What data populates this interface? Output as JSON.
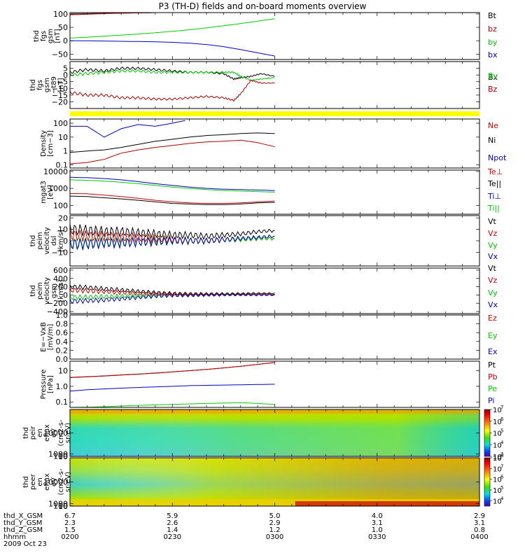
{
  "title": "P3 (TH-D) fields and on-board moments overview",
  "chart_data": [
    {
      "type": "line",
      "panel": "fgs_gsm",
      "ylabel": [
        "thd",
        "fgs",
        "gsm",
        "[nT]"
      ],
      "ylim": [
        -70,
        105
      ],
      "ticks": [
        {
          "v": 100,
          "t": "100"
        },
        {
          "v": 50,
          "t": "50"
        },
        {
          "v": 0,
          "t": "0"
        },
        {
          "v": -50,
          "t": "−50"
        }
      ],
      "x": [
        0,
        5,
        10,
        15,
        20,
        25,
        30,
        35,
        40,
        45,
        50,
        55,
        60
      ],
      "series": [
        {
          "name": "Bt",
          "color": "#000000",
          "values": [
            100,
            101,
            102,
            103,
            104,
            105,
            106,
            106,
            106,
            106,
            106,
            106,
            106
          ]
        },
        {
          "name": "bz",
          "color": "#b00000",
          "values": [
            97,
            99,
            101,
            103,
            104,
            105,
            106,
            106,
            106,
            106,
            106,
            106,
            106
          ]
        },
        {
          "name": "by",
          "color": "#00cc00",
          "values": [
            10,
            13,
            17,
            21,
            25,
            30,
            35,
            41,
            48,
            56,
            64,
            73,
            82
          ]
        },
        {
          "name": "bx",
          "color": "#0000cc",
          "values": [
            0,
            0,
            -1,
            -2,
            -3,
            -4,
            -6,
            -9,
            -14,
            -22,
            -33,
            -45,
            -57
          ]
        }
      ]
    },
    {
      "type": "line",
      "panel": "fgs_gsm_t89",
      "ylabel": [
        "thd",
        "fgs",
        "gsm",
        "−t89",
        "[nT]"
      ],
      "ylim": [
        -25,
        10
      ],
      "ticks": [
        {
          "v": 5,
          "t": "5"
        },
        {
          "v": 0,
          "t": "0"
        },
        {
          "v": -5,
          "t": "−5"
        },
        {
          "v": -10,
          "t": "−10"
        },
        {
          "v": -15,
          "t": "−15"
        },
        {
          "v": -20,
          "t": "−20"
        }
      ],
      "x": [
        0,
        5,
        10,
        15,
        20,
        25,
        30,
        35,
        40,
        45,
        48,
        50,
        53,
        56,
        60
      ],
      "series": [
        {
          "name": "Bx",
          "color": "#000000",
          "values": [
            2,
            4,
            3,
            5,
            5,
            4,
            3,
            2,
            2,
            1,
            -3,
            -2,
            -1,
            1,
            -1
          ]
        },
        {
          "name": "By",
          "color": "#00cc00",
          "values": [
            0,
            1,
            2,
            3,
            3,
            2,
            2,
            2,
            2,
            2,
            2,
            -1,
            -4,
            -3,
            -2
          ]
        },
        {
          "name": "Bz",
          "color": "#b00000",
          "values": [
            -13,
            -15,
            -15,
            -17,
            -17,
            -18,
            -18,
            -17,
            -16,
            -17,
            -19,
            -14,
            -4,
            -6,
            -6
          ]
        }
      ]
    },
    {
      "type": "line",
      "panel": "density",
      "log": true,
      "ylabel": [
        "Density",
        "[cm−3]"
      ],
      "ylim": [
        0.06,
        200
      ],
      "ticks": [
        {
          "v": 100,
          "t": "100"
        },
        {
          "v": 10,
          "t": "10"
        },
        {
          "v": 1,
          "t": "1"
        },
        {
          "v": 0.1,
          "t": "0.1"
        }
      ],
      "x": [
        0,
        5,
        10,
        15,
        20,
        25,
        30,
        35,
        40,
        45,
        50,
        55,
        60
      ],
      "series": [
        {
          "name": "Ne",
          "color": "#b00000",
          "values": [
            0.12,
            0.15,
            0.25,
            0.7,
            1.2,
            1.8,
            2.5,
            3.5,
            4.5,
            5,
            6,
            4,
            2
          ]
        },
        {
          "name": "Ni",
          "color": "#000000",
          "values": [
            0.8,
            1.0,
            1.2,
            1.8,
            3,
            5,
            7,
            10,
            13,
            15,
            18,
            20,
            18
          ]
        },
        {
          "name": "Npot",
          "color": "#0000cc",
          "values": [
            60,
            60,
            10,
            40,
            80,
            60,
            100,
            180,
            null,
            null,
            null,
            null,
            null
          ]
        }
      ]
    },
    {
      "type": "line",
      "panel": "temperature",
      "log": true,
      "ylabel": [
        "mgat3",
        "[eV]"
      ],
      "ylim": [
        30,
        12000
      ],
      "ticks": [
        {
          "v": 10000,
          "t": "10000"
        },
        {
          "v": 1000,
          "t": "1000"
        },
        {
          "v": 100,
          "t": "100"
        }
      ],
      "x": [
        0,
        5,
        10,
        15,
        20,
        25,
        30,
        35,
        40,
        45,
        50,
        55,
        60
      ],
      "series": [
        {
          "name": "Te⊥",
          "color": "#cc0000",
          "values": [
            500,
            480,
            400,
            330,
            260,
            200,
            160,
            140,
            130,
            130,
            140,
            160,
            180
          ]
        },
        {
          "name": "Te||",
          "color": "#000000",
          "values": [
            350,
            330,
            280,
            240,
            200,
            160,
            130,
            120,
            110,
            110,
            120,
            140,
            150
          ]
        },
        {
          "name": "Ti⊥",
          "color": "#0000cc",
          "values": [
            4500,
            4300,
            3800,
            3200,
            2500,
            1900,
            1500,
            1200,
            1000,
            900,
            850,
            800,
            750
          ]
        },
        {
          "name": "Ti||",
          "color": "#00cc00",
          "values": [
            3200,
            3000,
            2700,
            2300,
            1900,
            1500,
            1200,
            1000,
            850,
            750,
            700,
            650,
            600
          ]
        }
      ]
    },
    {
      "type": "line",
      "panel": "velocity_dsl",
      "ylabel": [
        "thd",
        "peim",
        "velocity",
        "dsl",
        "[km/s]"
      ],
      "ylim": [
        -22,
        22
      ],
      "ticks": [
        {
          "v": 20,
          "t": "20"
        },
        {
          "v": 10,
          "t": "10"
        },
        {
          "v": 0,
          "t": "0"
        },
        {
          "v": -10,
          "t": "−10"
        }
      ],
      "x": [
        0,
        5,
        10,
        15,
        20,
        25,
        30,
        35,
        40,
        45,
        50,
        55,
        60
      ],
      "series": [
        {
          "name": "Vt",
          "color": "#000000",
          "values": [
            10,
            9,
            8,
            8,
            7,
            6,
            5,
            5,
            4,
            5,
            6,
            8,
            9
          ]
        },
        {
          "name": "Vz",
          "color": "#cc0000",
          "values": [
            5,
            4,
            4,
            3,
            3,
            2,
            1,
            0,
            0,
            1,
            1,
            2,
            2
          ]
        },
        {
          "name": "Vy",
          "color": "#00cc00",
          "values": [
            -2,
            -2,
            -1,
            -1,
            -1,
            0,
            0,
            0,
            0,
            1,
            1,
            2,
            2
          ]
        },
        {
          "name": "Vx",
          "color": "#0000cc",
          "values": [
            -3,
            -3,
            -2,
            -2,
            -1,
            -1,
            0,
            0,
            0,
            1,
            2,
            3,
            4
          ]
        }
      ]
    },
    {
      "type": "line",
      "panel": "velocity_gsm",
      "ylabel": [
        "thd",
        "peim",
        "velocity",
        "gsm",
        "[km/s]"
      ],
      "ylim": [
        -450,
        650
      ],
      "ticks": [
        {
          "v": 600,
          "t": "600"
        },
        {
          "v": 400,
          "t": "400"
        },
        {
          "v": 200,
          "t": "200"
        },
        {
          "v": 0,
          "t": "0"
        },
        {
          "v": -200,
          "t": "−200"
        },
        {
          "v": -400,
          "t": "−400"
        }
      ],
      "x": [
        0,
        5,
        10,
        15,
        20,
        25,
        30,
        35,
        40,
        45,
        50,
        55,
        60
      ],
      "series": [
        {
          "name": "Vt",
          "color": "#000000",
          "values": [
            200,
            180,
            150,
            120,
            90,
            60,
            40,
            30,
            30,
            30,
            35,
            40,
            40
          ]
        },
        {
          "name": "Vz",
          "color": "#cc0000",
          "values": [
            120,
            100,
            80,
            60,
            40,
            25,
            15,
            10,
            10,
            10,
            15,
            15,
            15
          ]
        },
        {
          "name": "Vy",
          "color": "#00cc00",
          "values": [
            -60,
            -50,
            -40,
            -30,
            -20,
            -15,
            -10,
            -10,
            -5,
            0,
            0,
            0,
            0
          ]
        },
        {
          "name": "Vx",
          "color": "#0000cc",
          "values": [
            -150,
            -140,
            -120,
            -90,
            -60,
            -30,
            -15,
            -10,
            -5,
            0,
            0,
            0,
            0
          ]
        }
      ]
    },
    {
      "type": "line",
      "panel": "efield",
      "ylabel": [
        "E=−VxB",
        "[mV/m]"
      ],
      "ylim": [
        0,
        1.0
      ],
      "ticks": [
        {
          "v": 1.0,
          "t": "1.0"
        },
        {
          "v": 0.8,
          "t": "0.8"
        },
        {
          "v": 0.6,
          "t": "0.6"
        },
        {
          "v": 0.4,
          "t": "0.4"
        },
        {
          "v": 0.2,
          "t": "0.2"
        },
        {
          "v": 0.0,
          "t": "0.0"
        }
      ],
      "x": [],
      "series": [
        {
          "name": "Ez",
          "color": "#cc0000",
          "values": []
        },
        {
          "name": "Ey",
          "color": "#00cc00",
          "values": []
        },
        {
          "name": "Ex",
          "color": "#0000cc",
          "values": []
        }
      ]
    },
    {
      "type": "line",
      "panel": "pressure",
      "log": true,
      "ylabel": [
        "Pressure",
        "[nPa]"
      ],
      "ylim": [
        0.045,
        40
      ],
      "ticks": [
        {
          "v": 10,
          "t": "10"
        },
        {
          "v": 1,
          "t": "1.0"
        },
        {
          "v": 0.1,
          "t": "0.1"
        }
      ],
      "x": [
        0,
        5,
        10,
        15,
        20,
        25,
        30,
        35,
        40,
        45,
        50,
        55,
        60
      ],
      "series": [
        {
          "name": "Pt",
          "color": "#000000",
          "values": [
            3.7,
            4.1,
            4.6,
            5.3,
            6.0,
            7.0,
            8.3,
            10,
            12,
            15,
            19,
            25,
            33
          ]
        },
        {
          "name": "Pb",
          "color": "#cc0000",
          "values": [
            3.6,
            4.0,
            4.5,
            5.2,
            5.9,
            6.9,
            8.2,
            9.9,
            11.9,
            14.9,
            18.9,
            24.9,
            32.9
          ]
        },
        {
          "name": "Pe",
          "color": "#00cc00",
          "values": [
            0.045,
            0.046,
            0.05,
            0.055,
            0.06,
            0.065,
            0.07,
            0.075,
            0.08,
            0.085,
            0.09,
            0.08,
            0.07
          ]
        },
        {
          "name": "Pi",
          "color": "#0000cc",
          "values": [
            0.5,
            0.6,
            0.68,
            0.76,
            0.84,
            0.92,
            1.0,
            1.1,
            1.15,
            1.2,
            1.25,
            1.3,
            1.35
          ]
        }
      ]
    },
    {
      "type": "heatmap",
      "panel": "ion_spectrogram",
      "ylabel": [
        "thd",
        "peir",
        "en",
        "eflux",
        "eV",
        "(cm2-s-",
        "sr-eV)"
      ],
      "ylim": [
        8,
        20000
      ],
      "ticks": [
        {
          "v": 10000,
          "t": "10000"
        },
        {
          "v": 1000,
          "t": "1000"
        },
        {
          "v": 100,
          "t": "100"
        },
        {
          "v": 10,
          "t": "10"
        }
      ],
      "colorbar": {
        "range_exp": [
          3,
          7
        ],
        "labels": [
          "7",
          "6",
          "5",
          "4",
          "3"
        ],
        "base": "10"
      }
    },
    {
      "type": "heatmap",
      "panel": "electron_spectrogram",
      "ylabel": [
        "thd",
        "peer",
        "en",
        "eflux",
        "eV",
        "(cm2-s-",
        "sr-eV)"
      ],
      "ylim": [
        7,
        20000
      ],
      "ticks": [
        {
          "v": 10000,
          "t": "10000"
        },
        {
          "v": 1000,
          "t": "1000"
        },
        {
          "v": 100,
          "t": "100"
        },
        {
          "v": 10,
          "t": "10"
        }
      ],
      "colorbar": {
        "range_exp": [
          3.5,
          8
        ],
        "labels": [
          "8",
          "7",
          "6",
          "5",
          "4"
        ],
        "base": "10"
      }
    }
  ],
  "x_axis": {
    "rows": [
      {
        "label": "thd_X_GSM",
        "values": [
          "6.7",
          "5.9",
          "5.0",
          "4.0",
          "2.9"
        ]
      },
      {
        "label": "thd_Y_GSM",
        "values": [
          "2.3",
          "2.6",
          "2.9",
          "3.1",
          "3.1"
        ]
      },
      {
        "label": "thd_Z_GSM",
        "values": [
          "1.5",
          "1.4",
          "1.2",
          "1.0",
          "0.8"
        ]
      },
      {
        "label": "hhmm",
        "values": [
          "0200",
          "0230",
          "0300",
          "0330",
          "0400"
        ]
      }
    ],
    "date": "2009 Oct 23"
  },
  "legends": [
    [
      {
        "t": "Bt",
        "c": "#000000"
      },
      {
        "t": "bz",
        "c": "#b00000"
      },
      {
        "t": "by",
        "c": "#00cc00"
      },
      {
        "t": "bx",
        "c": "#0000cc"
      }
    ],
    [
      {
        "t": "Bx",
        "c": "#000000",
        "overlap": "By",
        "oc": "#00cc00"
      },
      {
        "t": "Bz",
        "c": "#b00000"
      }
    ],
    [
      {
        "t": "Ne",
        "c": "#cc0000"
      },
      {
        "t": "Ni",
        "c": "#000000"
      },
      {
        "t": "Npot",
        "c": "#0000cc"
      }
    ],
    [
      {
        "t": "Te⊥",
        "c": "#cc0000"
      },
      {
        "t": "Te||",
        "c": "#000000"
      },
      {
        "t": "Ti⊥",
        "c": "#0000cc"
      },
      {
        "t": "Ti||",
        "c": "#00cc00"
      }
    ],
    [
      {
        "t": "Vt",
        "c": "#000000"
      },
      {
        "t": "Vz",
        "c": "#cc0000"
      },
      {
        "t": "Vy",
        "c": "#00cc00"
      },
      {
        "t": "Vx",
        "c": "#0000cc"
      }
    ],
    [
      {
        "t": "Vt",
        "c": "#000000"
      },
      {
        "t": "Vz",
        "c": "#cc0000"
      },
      {
        "t": "Vy",
        "c": "#00cc00"
      },
      {
        "t": "Vx",
        "c": "#0000cc"
      }
    ],
    [
      {
        "t": "Ez",
        "c": "#cc0000"
      },
      {
        "t": "Ey",
        "c": "#00cc00"
      },
      {
        "t": "Ex",
        "c": "#0000cc"
      }
    ],
    [
      {
        "t": "Pt",
        "c": "#000000"
      },
      {
        "t": "Pb",
        "c": "#cc0000"
      },
      {
        "t": "Pe",
        "c": "#00cc00"
      },
      {
        "t": "Pi",
        "c": "#0000cc"
      }
    ]
  ],
  "status_bar_color": "#ffff00"
}
